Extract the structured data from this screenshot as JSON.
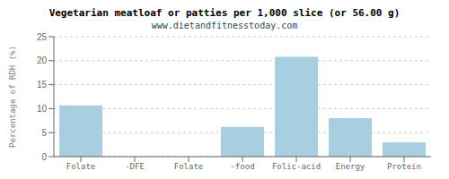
{
  "chart_data": {
    "type": "bar",
    "title": "Vegetarian meatloaf or patties per 1,000 slice (or 56.00 g)",
    "subtitle": "www.dietandfitnesstoday.com",
    "categories": [
      "Folate",
      "-DFE",
      "Folate",
      "-food",
      "Folic-acid",
      "Energy",
      "Protein"
    ],
    "values": [
      10.7,
      0.0,
      0.0,
      6.2,
      20.8,
      8.0,
      3.0
    ],
    "color": "#a8cfe0",
    "ylabel": "Percentage of RDH (%)",
    "ylim": [
      0,
      25
    ],
    "yticks": [
      0,
      5,
      10,
      15,
      20,
      25
    ],
    "grid": true
  }
}
